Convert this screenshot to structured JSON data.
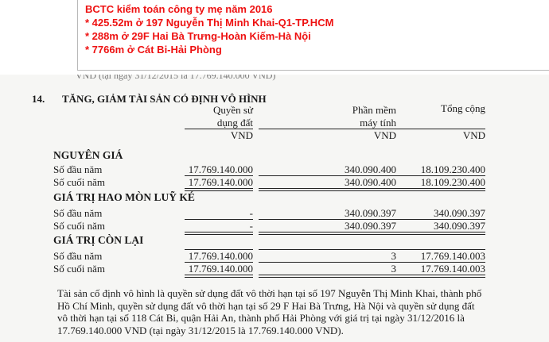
{
  "note": {
    "lines": [
      "BCTC kiểm toán công ty mẹ năm 2016",
      "* 425.52m ở 197 Nguyễn Thị Minh Khai-Q1-TP.HCM",
      "* 288m ở 29F Hai Bà Trưng-Hoàn Kiếm-Hà Nội",
      "* 7766m ở Cát Bi-Hải Phòng"
    ],
    "color": "#ee1111"
  },
  "section": {
    "number": "14.",
    "title": "TĂNG, GIẢM TÀI SẢN CÓ ĐỊNH VÔ HÌNH"
  },
  "columns": [
    {
      "l1": "Quyền sử",
      "l2": "dụng đất",
      "unit": "VND"
    },
    {
      "l1": "Phần mềm",
      "l2": "máy tính",
      "unit": "VND"
    },
    {
      "l1": "Tổng cộng",
      "l2": "",
      "unit": "VND"
    }
  ],
  "groups": [
    {
      "title": "NGUYÊN GIÁ",
      "rows": [
        {
          "label": "Số đầu năm",
          "values": [
            "17.769.140.000",
            "340.090.400",
            "18.109.230.400"
          ]
        },
        {
          "label": "Số cuối năm",
          "values": [
            "17.769.140.000",
            "340.090.400",
            "18.109.230.400"
          ]
        }
      ]
    },
    {
      "title": "GIÁ TRỊ HAO MÒN LUỸ KÉ",
      "rows": [
        {
          "label": "Số đầu năm",
          "values": [
            "-",
            "340.090.397",
            "340.090.397"
          ]
        },
        {
          "label": "Số cuối năm",
          "values": [
            "-",
            "340.090.397",
            "340.090.397"
          ]
        }
      ]
    },
    {
      "title": "GIÁ TRỊ CÒN LẠI",
      "rows": [
        {
          "label": "Số đầu năm",
          "values": [
            "17.769.140.000",
            "3",
            "17.769.140.003"
          ]
        },
        {
          "label": "Số cuối năm",
          "values": [
            "17.769.140.000",
            "3",
            "17.769.140.003"
          ]
        }
      ]
    }
  ],
  "paragraph": [
    "Tài sản cố định vô hình là quyền sử dụng đất vô thời hạn tại số 197 Nguyễn Thị Minh Khai, thành phố",
    "Hồ Chí Minh, quyền sử dụng đất vô thời hạn tại số 29 F Hai Bà Trưng, Hà Nội và quyền sử dụng đất",
    "vô thời hạn tại số 118 Cát Bi, quận Hải An, thành phố Hải Phòng với giá trị tại ngày 31/12/2016 là",
    "17.769.140.000 VND (tại ngày 31/12/2015 là 17.769.140.000 VND)."
  ]
}
